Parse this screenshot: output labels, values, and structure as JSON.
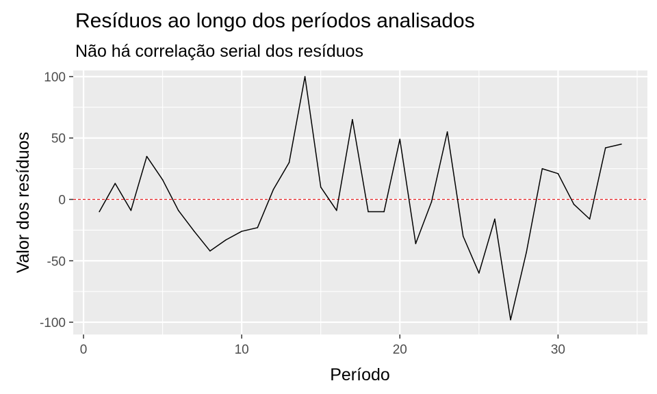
{
  "chart_data": {
    "type": "line",
    "title": "Resíduos ao longo dos períodos analisados",
    "subtitle": "Não há correlação serial dos resíduos",
    "xlabel": "Período",
    "ylabel": "Valor dos resíduos",
    "xlim": [
      -0.65,
      35.65
    ],
    "ylim": [
      -110,
      105
    ],
    "x_ticks": [
      0,
      10,
      20,
      30
    ],
    "x_tick_labels": [
      "0",
      "10",
      "20",
      "30"
    ],
    "y_ticks": [
      -100,
      -50,
      0,
      50,
      100
    ],
    "y_tick_labels": [
      "-100",
      "-50",
      "0",
      "50",
      "100"
    ],
    "grid": true,
    "panel_color": "#ebebeb",
    "line_color": "#000000",
    "reference_line": {
      "y": 0,
      "color": "#e31a1c",
      "style": "dashed"
    },
    "x": [
      1,
      2,
      3,
      4,
      5,
      6,
      7,
      8,
      9,
      10,
      11,
      12,
      13,
      14,
      15,
      16,
      17,
      18,
      19,
      20,
      21,
      22,
      23,
      24,
      25,
      26,
      27,
      28,
      29,
      30,
      31,
      32,
      33,
      34
    ],
    "values": [
      -10,
      13,
      -9,
      35,
      16,
      -9,
      -26,
      -42,
      -33,
      -26,
      -23,
      8,
      30,
      100,
      10,
      -9,
      65,
      -10,
      -10,
      49,
      -36,
      -2,
      55,
      -30,
      -60,
      -16,
      -98,
      -43,
      25,
      21,
      -4,
      -16,
      42,
      45
    ]
  }
}
